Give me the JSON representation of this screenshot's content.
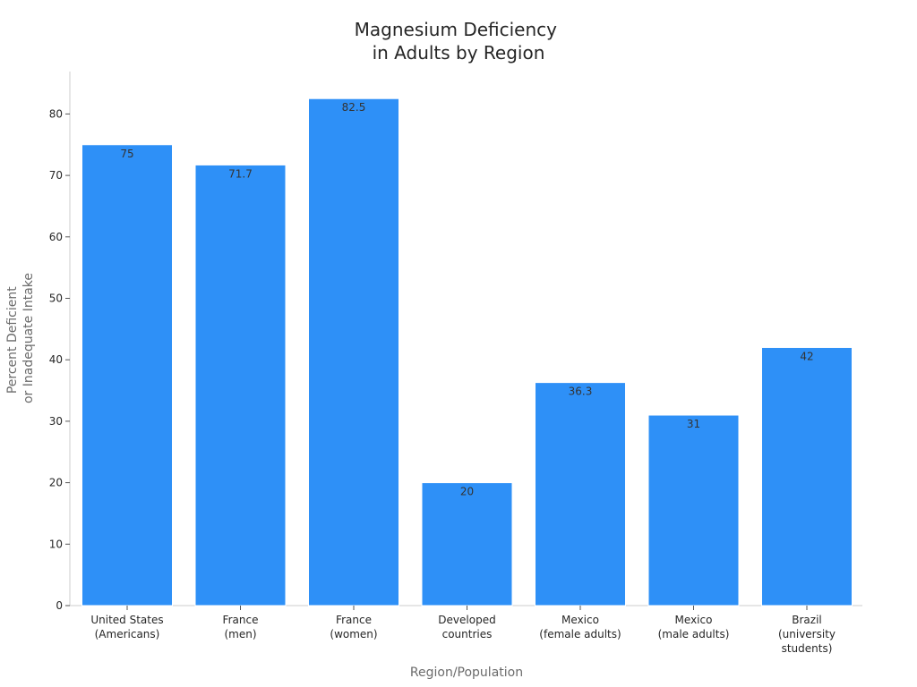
{
  "chart_data": {
    "type": "bar",
    "title_lines": [
      "Magnesium Deficiency",
      "in Adults by Region"
    ],
    "xlabel": "Region/Population",
    "ylabel_lines": [
      "Percent Deficient",
      "or Inadequate Intake"
    ],
    "categories": [
      [
        "United States",
        "(Americans)"
      ],
      [
        "France",
        "(men)"
      ],
      [
        "France",
        "(women)"
      ],
      [
        "Developed",
        "countries"
      ],
      [
        "Mexico",
        "(female adults)"
      ],
      [
        "Mexico",
        "(male adults)"
      ],
      [
        "Brazil",
        "(university",
        "students)"
      ]
    ],
    "values": [
      75,
      71.7,
      82.5,
      20,
      36.3,
      31,
      42
    ],
    "value_labels": [
      "75",
      "71.7",
      "82.5",
      "20",
      "36.3",
      "31",
      "42"
    ],
    "ylim": [
      0,
      86.9
    ],
    "yticks": [
      0,
      10,
      20,
      30,
      40,
      50,
      60,
      70,
      80
    ],
    "grid": false,
    "colors": {
      "bar": "#2e90f7",
      "bar_edge": "#ffffff",
      "axis": "#cccccc",
      "text": "#262626"
    }
  }
}
